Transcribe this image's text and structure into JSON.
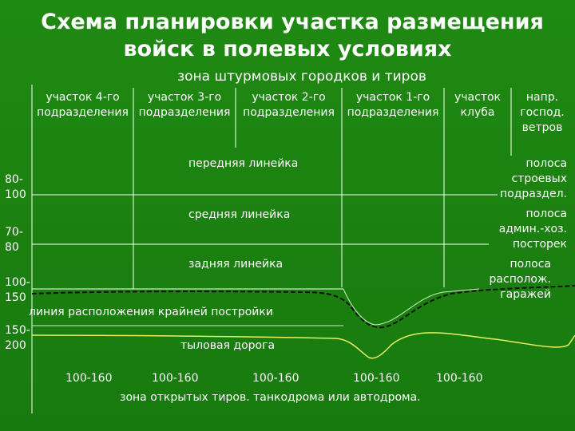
{
  "title_line1": "Схема планировки участка размещения",
  "title_line2": "войск в полевых условиях",
  "subtitle": "зона штурмовых городков и тиров",
  "sections": [
    {
      "line1": "участок 4-го",
      "line2": "подразделения"
    },
    {
      "line1": "участок 3-го",
      "line2": "подразделения"
    },
    {
      "line1": "участок 2-го",
      "line2": "подразделения"
    },
    {
      "line1": "участок 1-го",
      "line2": "подразделения"
    },
    {
      "line1": "участок",
      "line2": "клуба"
    },
    {
      "line1": "напр.",
      "line2": "господ.",
      "line3": "ветров"
    }
  ],
  "lines": {
    "front": "передняя линейка",
    "middle": "средняя линейка",
    "rear": "задняя линейка",
    "building_line": "линия расположения крайней постройки",
    "rear_road": "тыловая дорога"
  },
  "distances": [
    {
      "line1": "80-",
      "line2": "100"
    },
    {
      "line1": "70-",
      "line2": "80"
    },
    {
      "line1": "100-",
      "line2": "150"
    },
    {
      "line1": "150-",
      "line2": "200"
    }
  ],
  "strips": [
    {
      "line1": "полоса",
      "line2": "строевых",
      "line3": "подраздел."
    },
    {
      "line1": "полоса",
      "line2": "админ.-хоз.",
      "line3": "посторек"
    },
    {
      "line1": "полоса",
      "line2": "располож.",
      "line3": "гаражей"
    }
  ],
  "range_values": [
    "100-160",
    "100-160",
    "100-160",
    "100-160",
    "100-160"
  ],
  "bottom_zone": "зона открытых тиров. танкодрома или автодрома."
}
